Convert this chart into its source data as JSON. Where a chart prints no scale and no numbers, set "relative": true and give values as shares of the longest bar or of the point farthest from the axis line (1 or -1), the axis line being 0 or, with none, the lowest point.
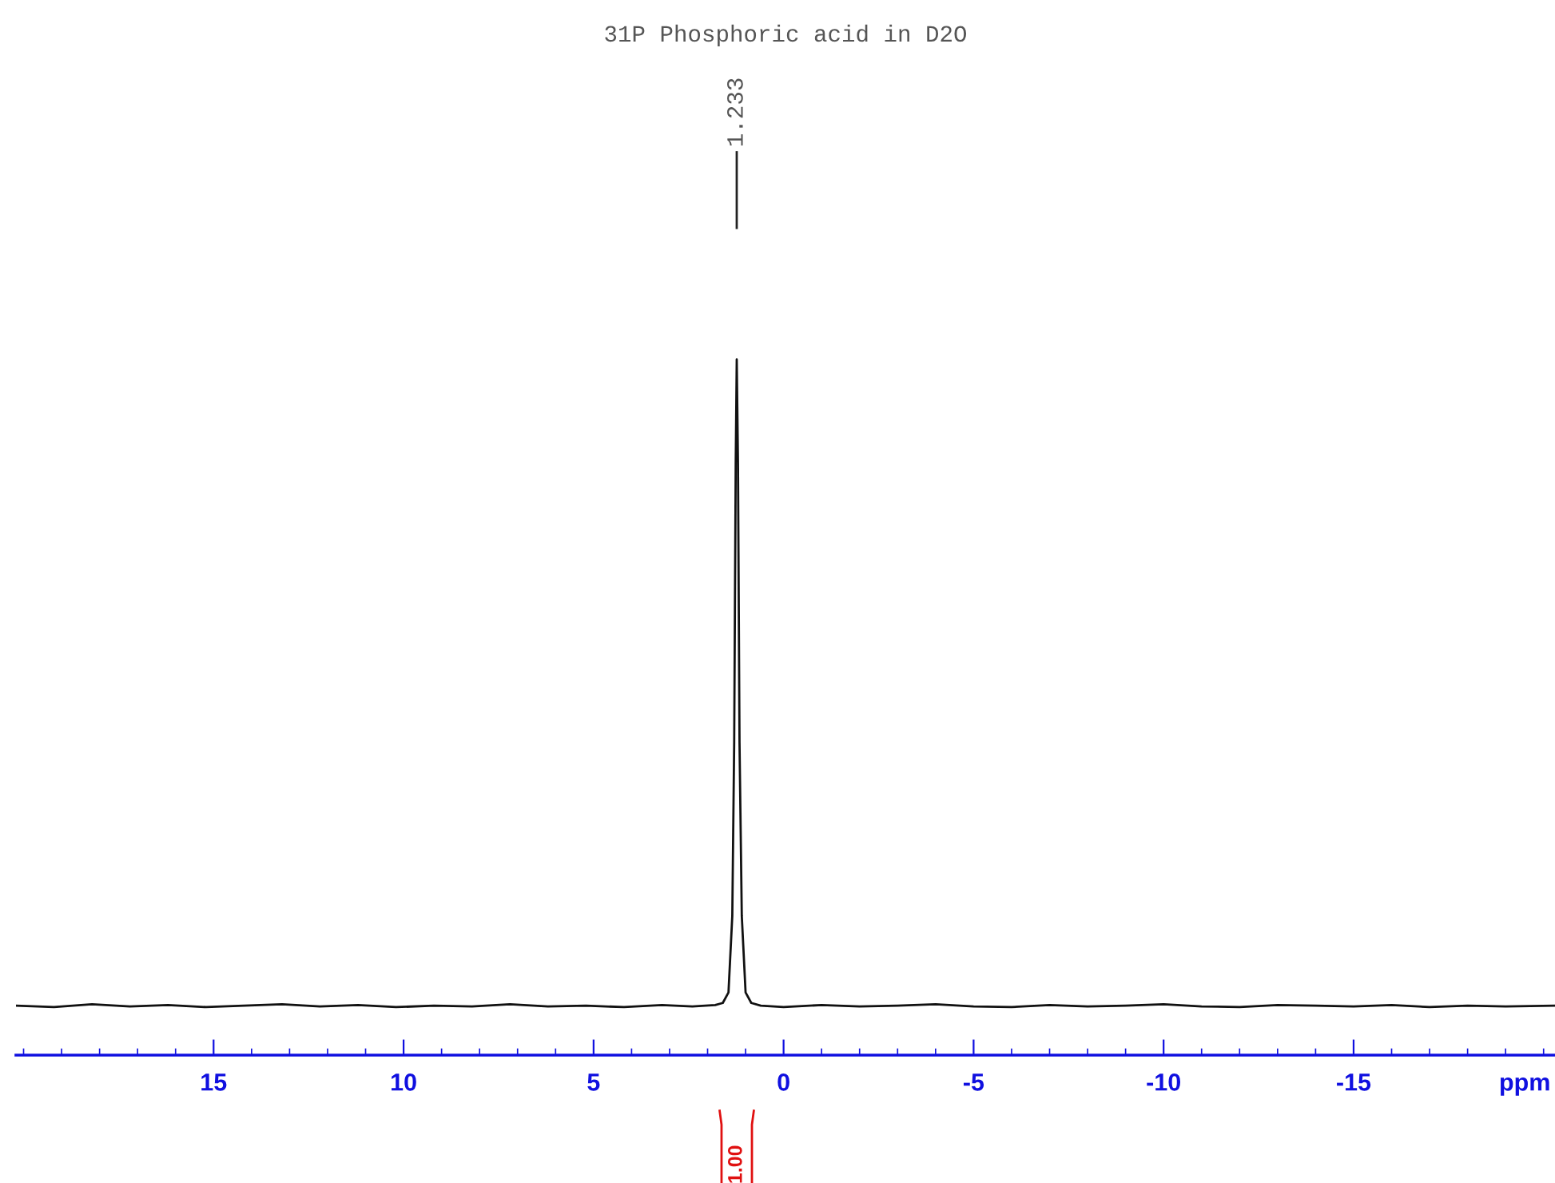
{
  "chart_data": {
    "type": "line",
    "title": "31P Phosphoric acid in D2O",
    "xlabel": "ppm",
    "relative": true,
    "grid": false,
    "xlim": [
      20.2,
      -20.3
    ],
    "xticks": [
      {
        "value": 20,
        "label": null
      },
      {
        "value": 19,
        "label": null
      },
      {
        "value": 18,
        "label": null
      },
      {
        "value": 17,
        "label": null
      },
      {
        "value": 16,
        "label": null
      },
      15,
      {
        "value": 14,
        "label": null
      },
      {
        "value": 13,
        "label": null
      },
      {
        "value": 12,
        "label": null
      },
      {
        "value": 11,
        "label": null
      },
      10,
      {
        "value": 9,
        "label": null
      },
      {
        "value": 8,
        "label": null
      },
      {
        "value": 7,
        "label": null
      },
      {
        "value": 6,
        "label": null
      },
      5,
      {
        "value": 4,
        "label": null
      },
      {
        "value": 3,
        "label": null
      },
      {
        "value": 2,
        "label": null
      },
      {
        "value": 1,
        "label": null
      },
      0,
      {
        "value": -1,
        "label": null
      },
      {
        "value": -2,
        "label": null
      },
      {
        "value": -3,
        "label": null
      },
      {
        "value": -4,
        "label": null
      },
      -5,
      {
        "value": -6,
        "label": null
      },
      {
        "value": -7,
        "label": null
      },
      {
        "value": -8,
        "label": null
      },
      {
        "value": -9,
        "label": null
      },
      -10,
      {
        "value": -11,
        "label": null
      },
      {
        "value": -12,
        "label": null
      },
      {
        "value": -13,
        "label": null
      },
      {
        "value": -14,
        "label": null
      },
      -15,
      {
        "value": -16,
        "label": null
      },
      {
        "value": -17,
        "label": null
      },
      {
        "value": -18,
        "label": null
      },
      {
        "value": -19,
        "label": null
      },
      {
        "value": -20,
        "label": null
      }
    ],
    "series": [
      {
        "color": "#111111",
        "x": [
          20.2,
          19.2,
          18.2,
          17.2,
          16.2,
          15.2,
          14.2,
          13.2,
          12.2,
          11.2,
          10.2,
          9.2,
          8.2,
          7.2,
          6.2,
          5.2,
          4.2,
          3.2,
          2.4,
          1.8,
          1.6,
          1.45,
          1.35,
          1.3,
          1.26,
          1.233,
          1.2,
          1.16,
          1.1,
          1.0,
          0.85,
          0.6,
          0.0,
          -1.0,
          -2.0,
          -3.0,
          -4.0,
          -5.0,
          -6.0,
          -7.0,
          -8.0,
          -9.0,
          -10.0,
          -11.0,
          -12.0,
          -13.0,
          -14.0,
          -15.0,
          -16.0,
          -17.0,
          -18.0,
          -19.0,
          -20.3
        ],
        "values": [
          0.071,
          0.069,
          0.073,
          0.07,
          0.072,
          0.069,
          0.071,
          0.073,
          0.07,
          0.072,
          0.069,
          0.071,
          0.07,
          0.073,
          0.07,
          0.071,
          0.069,
          0.072,
          0.07,
          0.072,
          0.075,
          0.09,
          0.2,
          0.45,
          0.85,
          1.0,
          0.85,
          0.45,
          0.2,
          0.09,
          0.075,
          0.071,
          0.069,
          0.072,
          0.07,
          0.071,
          0.073,
          0.07,
          0.069,
          0.072,
          0.07,
          0.071,
          0.073,
          0.07,
          0.069,
          0.072,
          0.071,
          0.07,
          0.072,
          0.069,
          0.071,
          0.07,
          0.071
        ]
      }
    ],
    "annotations": [
      "1.233",
      "1.00"
    ]
  }
}
